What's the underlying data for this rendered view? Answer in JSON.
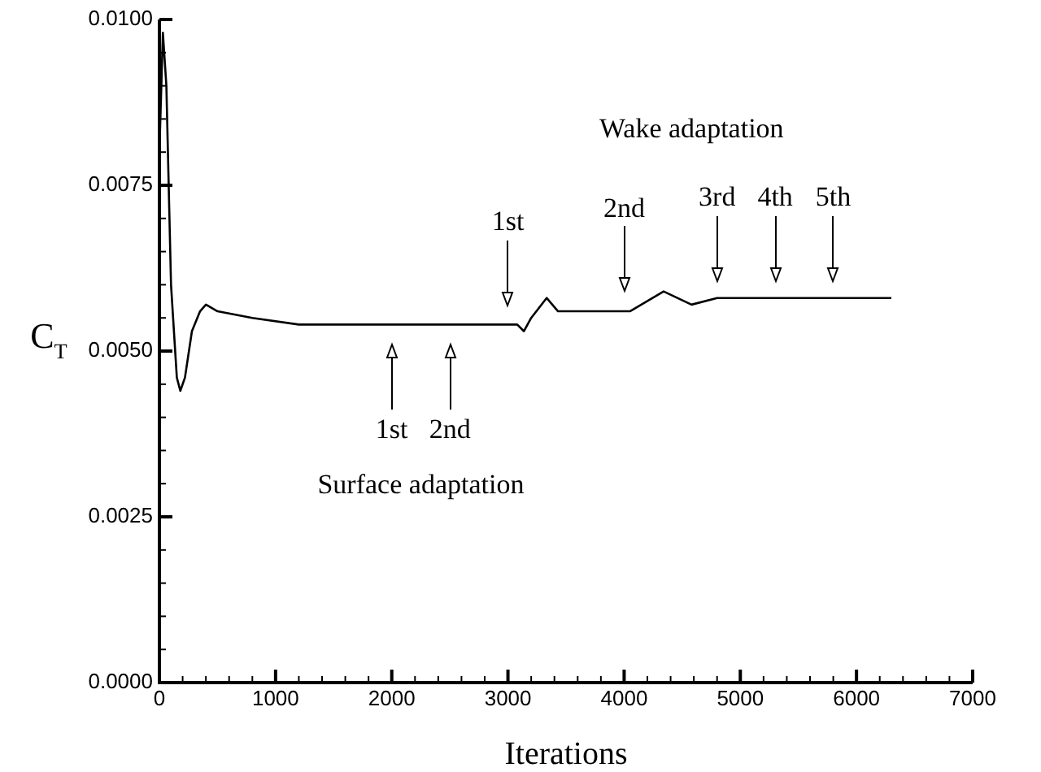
{
  "chart_data": {
    "type": "line",
    "xlabel": "Iterations",
    "ylabel": "C$_{T}$",
    "x": [
      0,
      30,
      60,
      100,
      150,
      180,
      220,
      280,
      350,
      400,
      500,
      800,
      1200,
      2000,
      3000,
      3080,
      3137,
      3200,
      3333,
      3431,
      3600,
      4050,
      4340,
      4580,
      4800,
      4930,
      5055,
      5300,
      5520,
      5800,
      6300
    ],
    "series": [
      {
        "color": "#000000",
        "values": [
          0.008,
          0.0098,
          0.009,
          0.006,
          0.0046,
          0.0044,
          0.0046,
          0.0053,
          0.0056,
          0.0057,
          0.0056,
          0.0055,
          0.0054,
          0.0054,
          0.0054,
          0.0054,
          0.0053,
          0.0055,
          0.0058,
          0.0056,
          0.0056,
          0.0056,
          0.0059,
          0.0057,
          0.0058,
          0.0058,
          0.0058,
          0.0058,
          0.0058,
          0.0058,
          0.0058
        ]
      }
    ],
    "xlim": [
      0,
      7000
    ],
    "ylim": [
      0,
      0.01
    ],
    "xticks": [
      0,
      {
        "value": 200,
        "label": null
      },
      {
        "value": 400,
        "label": null
      },
      {
        "value": 600,
        "label": null
      },
      {
        "value": 800,
        "label": null
      },
      1000,
      {
        "value": 1200,
        "label": null
      },
      {
        "value": 1400,
        "label": null
      },
      {
        "value": 1600,
        "label": null
      },
      {
        "value": 1800,
        "label": null
      },
      2000,
      {
        "value": 2200,
        "label": null
      },
      {
        "value": 2400,
        "label": null
      },
      {
        "value": 2600,
        "label": null
      },
      {
        "value": 2800,
        "label": null
      },
      3000,
      {
        "value": 3200,
        "label": null
      },
      {
        "value": 3400,
        "label": null
      },
      {
        "value": 3600,
        "label": null
      },
      {
        "value": 3800,
        "label": null
      },
      4000,
      {
        "value": 4200,
        "label": null
      },
      {
        "value": 4400,
        "label": null
      },
      {
        "value": 4600,
        "label": null
      },
      {
        "value": 4800,
        "label": null
      },
      5000,
      {
        "value": 5200,
        "label": null
      },
      {
        "value": 5400,
        "label": null
      },
      {
        "value": 5600,
        "label": null
      },
      {
        "value": 5800,
        "label": null
      },
      6000,
      {
        "value": 6200,
        "label": null
      },
      {
        "value": 6400,
        "label": null
      },
      {
        "value": 6600,
        "label": null
      },
      {
        "value": 6800,
        "label": null
      },
      7000
    ],
    "yticks": [
      {
        "value": 0,
        "label": "0.0000"
      },
      {
        "value": 0.0005,
        "label": null
      },
      {
        "value": 0.001,
        "label": null
      },
      {
        "value": 0.0015,
        "label": null
      },
      {
        "value": 0.002,
        "label": null
      },
      {
        "value": 0.0025,
        "label": "0.0025"
      },
      {
        "value": 0.003,
        "label": null
      },
      {
        "value": 0.0035,
        "label": null
      },
      {
        "value": 0.004,
        "label": null
      },
      {
        "value": 0.0045,
        "label": null
      },
      {
        "value": 0.005,
        "label": "0.0050"
      },
      {
        "value": 0.0055,
        "label": null
      },
      {
        "value": 0.006,
        "label": null
      },
      {
        "value": 0.0065,
        "label": null
      },
      {
        "value": 0.007,
        "label": null
      },
      {
        "value": 0.0075,
        "label": "0.0075"
      },
      {
        "value": 0.008,
        "label": null
      },
      {
        "value": 0.0085,
        "label": null
      },
      {
        "value": 0.009,
        "label": null
      },
      {
        "value": 0.0095,
        "label": null
      },
      {
        "value": 0.01,
        "label": "0.0100"
      }
    ],
    "grid": false,
    "legend": false,
    "marker": "none",
    "line_style": "solid",
    "annotations": [
      "Wake adaptation",
      "1st",
      "2nd",
      "3rd",
      "4th",
      "5th",
      "Surface adaptation",
      "1st",
      "2nd"
    ]
  }
}
